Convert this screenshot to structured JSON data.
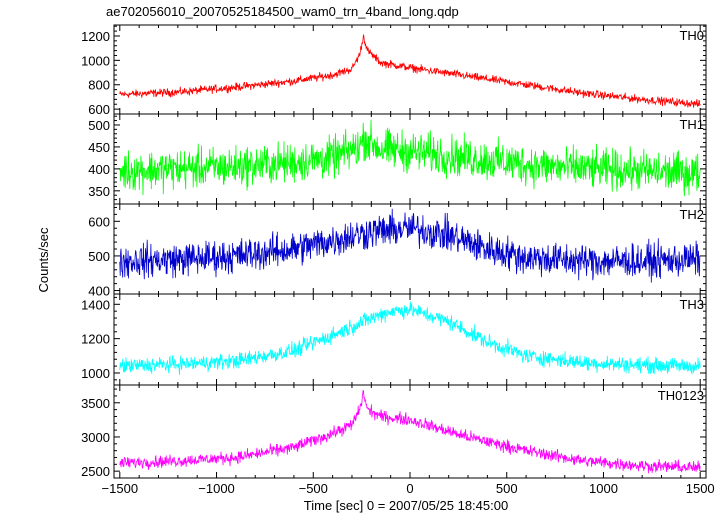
{
  "figure": {
    "title": "ae702056010_20070525184500_wam0_trn_4band_long.qdp",
    "xlabel": "Time [sec] 0 = 2007/05/25 18:45:00",
    "ylabel": "Counts/sec"
  },
  "chart_data": [
    {
      "type": "line",
      "name": "TH0",
      "label": "TH0",
      "color": "#ff0000",
      "xlim": [
        -1530,
        1530
      ],
      "ylim": [
        560,
        1290
      ],
      "yticks": [
        600,
        800,
        1000,
        1200
      ],
      "x": [
        -1500,
        -1200,
        -900,
        -600,
        -400,
        -300,
        -260,
        -240,
        -220,
        -150,
        0,
        300,
        600,
        900,
        1200,
        1500
      ],
      "y": [
        720,
        740,
        780,
        830,
        880,
        930,
        1050,
        1200,
        1080,
        980,
        940,
        870,
        800,
        730,
        680,
        640
      ],
      "noise": 20,
      "grid": false
    },
    {
      "type": "line",
      "name": "TH1",
      "label": "TH1",
      "color": "#00ff00",
      "xlim": [
        -1530,
        1530
      ],
      "ylim": [
        320,
        525
      ],
      "yticks": [
        350,
        400,
        450,
        500
      ],
      "x": [
        -1500,
        -1200,
        -900,
        -600,
        -400,
        -260,
        -240,
        -150,
        0,
        300,
        600,
        900,
        1200,
        1500
      ],
      "y": [
        395,
        400,
        405,
        415,
        425,
        450,
        470,
        445,
        440,
        425,
        410,
        400,
        395,
        390
      ],
      "noise": 28,
      "grid": false
    },
    {
      "type": "line",
      "name": "TH2",
      "label": "TH2",
      "color": "#0000cc",
      "xlim": [
        -1530,
        1530
      ],
      "ylim": [
        390,
        650
      ],
      "yticks": [
        400,
        500,
        600
      ],
      "x": [
        -1500,
        -1200,
        -900,
        -600,
        -400,
        -200,
        0,
        200,
        400,
        600,
        900,
        1200,
        1500
      ],
      "y": [
        485,
        490,
        500,
        520,
        545,
        570,
        580,
        560,
        520,
        495,
        485,
        485,
        490
      ],
      "noise": 30,
      "grid": false
    },
    {
      "type": "line",
      "name": "TH3",
      "label": "TH3",
      "color": "#00ffff",
      "xlim": [
        -1530,
        1530
      ],
      "ylim": [
        930,
        1460
      ],
      "yticks": [
        1000,
        1200,
        1400
      ],
      "x": [
        -1500,
        -1200,
        -900,
        -600,
        -400,
        -200,
        -100,
        0,
        200,
        400,
        600,
        900,
        1200,
        1500
      ],
      "y": [
        1040,
        1050,
        1070,
        1130,
        1220,
        1320,
        1360,
        1370,
        1300,
        1180,
        1100,
        1060,
        1045,
        1040
      ],
      "noise": 28,
      "grid": false
    },
    {
      "type": "line",
      "name": "TH0123",
      "label": "TH0123",
      "color": "#ff00ff",
      "xlim": [
        -1530,
        1530
      ],
      "ylim": [
        2400,
        3760
      ],
      "yticks": [
        2500,
        3000,
        3500
      ],
      "x": [
        -1500,
        -1200,
        -900,
        -600,
        -400,
        -300,
        -260,
        -240,
        -220,
        -150,
        0,
        300,
        600,
        900,
        1200,
        1500
      ],
      "y": [
        2620,
        2650,
        2700,
        2850,
        3050,
        3180,
        3400,
        3650,
        3400,
        3300,
        3250,
        3000,
        2800,
        2650,
        2580,
        2550
      ],
      "noise": 55,
      "grid": false
    }
  ],
  "x_axis": {
    "ticks": [
      -1500,
      -1000,
      -500,
      0,
      500,
      1000,
      1500
    ],
    "tick_labels": [
      "−1500",
      "−1000",
      "−500",
      "0",
      "500",
      "1000",
      "1500"
    ]
  }
}
